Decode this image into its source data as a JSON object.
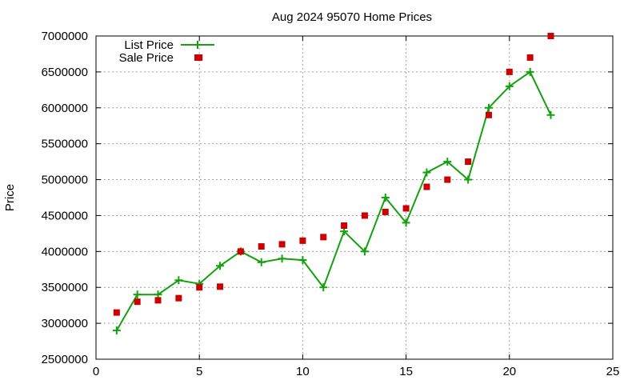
{
  "chart_data": {
    "type": "line",
    "title": "Aug 2024 95070 Home Prices",
    "xlabel": "",
    "ylabel": "Price",
    "xlim": [
      0,
      25
    ],
    "ylim": [
      2500000,
      7000000
    ],
    "xticks": [
      "0",
      "5",
      "10",
      "15",
      "20",
      "25"
    ],
    "yticks": [
      "2500000",
      "3000000",
      "3500000",
      "4000000",
      "4500000",
      "5000000",
      "5500000",
      "6000000",
      "6500000",
      "7000000"
    ],
    "grid": true,
    "legend_position": "top-left",
    "series": [
      {
        "name": "List Price",
        "style": "line-with-plus-markers",
        "color": "#13a10e",
        "x": [
          1,
          2,
          3,
          4,
          5,
          6,
          7,
          8,
          9,
          10,
          11,
          12,
          13,
          14,
          15,
          16,
          17,
          18,
          19,
          20,
          21,
          22
        ],
        "values": [
          2900000,
          3400000,
          3400000,
          3600000,
          3550000,
          3800000,
          4000000,
          3850000,
          3900000,
          3880000,
          3500000,
          4280000,
          4000000,
          4750000,
          4400000,
          5100000,
          5250000,
          5000000,
          6000000,
          6300000,
          6500000,
          5900000
        ]
      },
      {
        "name": "Sale Price",
        "style": "square-markers",
        "color": "#cc0000",
        "x": [
          1,
          2,
          3,
          4,
          5,
          5,
          6,
          7,
          8,
          9,
          10,
          11,
          12,
          13,
          14,
          15,
          16,
          17,
          18,
          19,
          20,
          21,
          22
        ],
        "values": [
          3150000,
          3300000,
          3320000,
          3350000,
          6700000,
          3500000,
          3510000,
          4000000,
          4070000,
          4100000,
          4150000,
          4200000,
          4360000,
          4500000,
          4550000,
          4600000,
          4900000,
          5000000,
          5250000,
          5900000,
          6500000,
          6700000,
          7000000
        ]
      }
    ]
  }
}
